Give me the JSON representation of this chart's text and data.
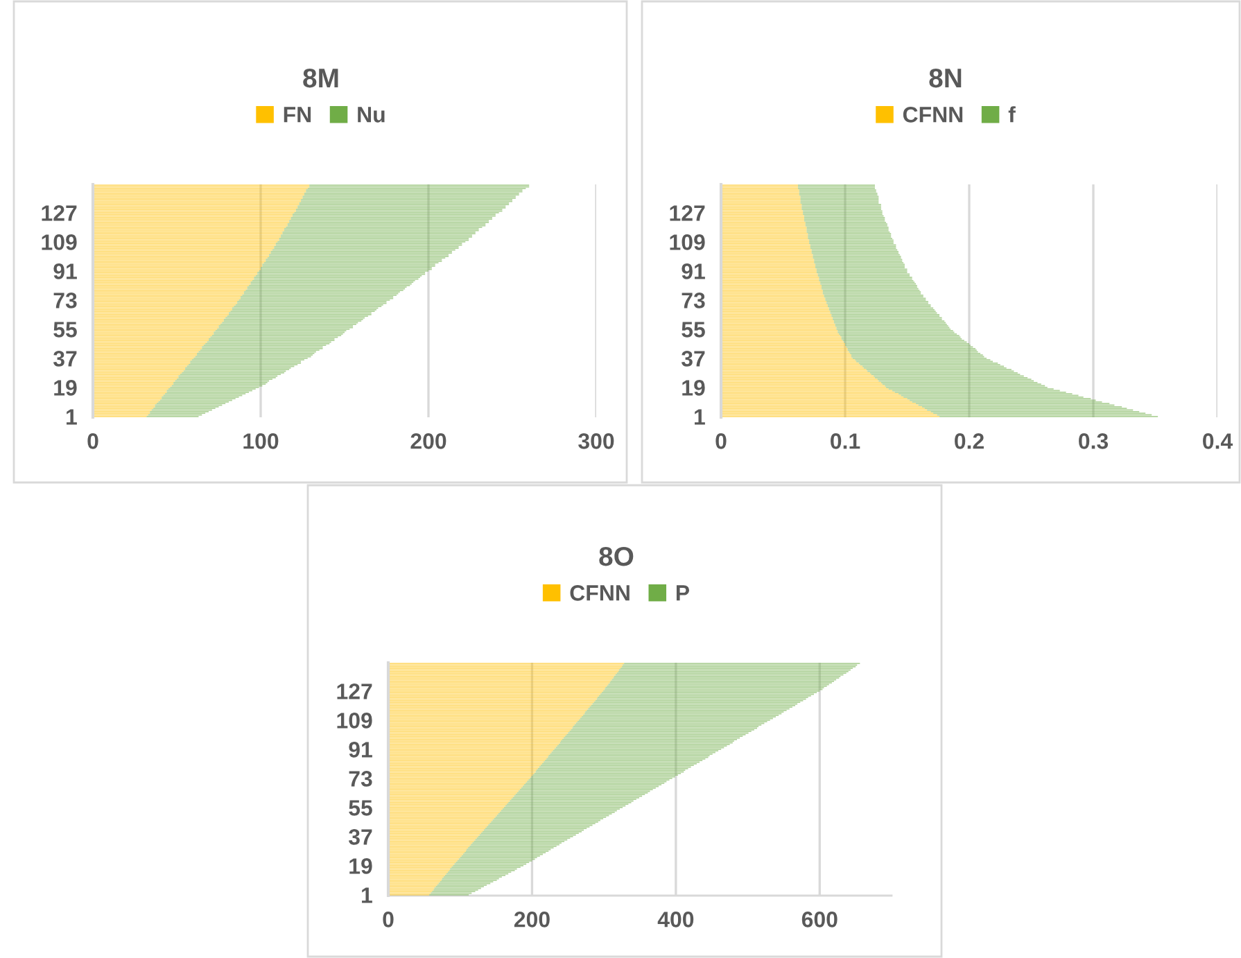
{
  "chart_data": [
    {
      "type": "bar",
      "orientation": "horizontal",
      "stacked": true,
      "title": "8M",
      "legend": "top",
      "grid": "x",
      "xlim": [
        0,
        300
      ],
      "xticks": [
        0,
        100,
        200,
        300
      ],
      "categories": [
        null,
        null,
        null,
        null,
        null,
        null,
        null,
        null,
        null,
        null,
        null,
        null,
        null,
        null,
        null,
        null,
        null,
        "127",
        null,
        null,
        null,
        null,
        null,
        null,
        null,
        null,
        null,
        null,
        null,
        null,
        null,
        null,
        null,
        null,
        null,
        "109",
        null,
        null,
        null,
        null,
        null,
        null,
        null,
        null,
        null,
        null,
        null,
        null,
        null,
        null,
        null,
        null,
        null,
        "91",
        null,
        null,
        null,
        null,
        null,
        null,
        null,
        null,
        null,
        null,
        null,
        null,
        null,
        null,
        null,
        null,
        null,
        "73",
        null,
        null,
        null,
        null,
        null,
        null,
        null,
        null,
        null,
        null,
        null,
        null,
        null,
        null,
        null,
        null,
        null,
        "55",
        null,
        null,
        null,
        null,
        null,
        null,
        null,
        null,
        null,
        null,
        null,
        null,
        null,
        null,
        null,
        null,
        null,
        "37",
        null,
        null,
        null,
        null,
        null,
        null,
        null,
        null,
        null,
        null,
        null,
        null,
        null,
        null,
        null,
        null,
        null,
        "19",
        null,
        null,
        null,
        null,
        null,
        null,
        null,
        null,
        null,
        null,
        null,
        null,
        null,
        null,
        null,
        null,
        null,
        "1"
      ],
      "series": [
        {
          "name": "FN",
          "color": "#ffc000",
          "values": [
            129,
            129,
            128,
            127,
            127,
            126,
            126,
            125,
            125,
            124,
            124,
            123,
            123,
            122,
            122,
            121,
            121,
            120,
            119,
            119,
            118,
            118,
            117,
            117,
            116,
            116,
            115,
            114,
            114,
            113,
            113,
            112,
            112,
            111,
            111,
            110,
            109,
            109,
            108,
            108,
            107,
            106,
            106,
            105,
            105,
            104,
            103,
            103,
            102,
            101,
            101,
            100,
            100,
            99,
            98,
            98,
            97,
            96,
            96,
            95,
            94,
            94,
            93,
            92,
            92,
            91,
            90,
            90,
            89,
            88,
            88,
            87,
            86,
            86,
            85,
            84,
            83,
            83,
            82,
            81,
            81,
            80,
            79,
            78,
            78,
            77,
            76,
            75,
            75,
            74,
            73,
            72,
            72,
            71,
            70,
            69,
            69,
            68,
            67,
            66,
            65,
            65,
            64,
            63,
            62,
            62,
            61,
            60,
            59,
            58,
            58,
            57,
            56,
            55,
            55,
            54,
            53,
            52,
            51,
            51,
            50,
            49,
            48,
            48,
            47,
            46,
            45,
            44,
            44,
            43,
            42,
            41,
            41,
            40,
            39,
            38,
            37,
            37,
            36,
            35,
            34,
            34,
            33,
            32
          ]
        },
        {
          "name": "Nu",
          "color": "#70ad47",
          "values": [
            131,
            131,
            130,
            129,
            129,
            128,
            128,
            127,
            127,
            126,
            126,
            125,
            125,
            124,
            124,
            123,
            123,
            122,
            121,
            121,
            120,
            120,
            119,
            119,
            118,
            118,
            117,
            116,
            116,
            115,
            115,
            114,
            114,
            113,
            113,
            112,
            111,
            111,
            110,
            110,
            109,
            108,
            108,
            107,
            107,
            106,
            105,
            105,
            104,
            103,
            103,
            102,
            102,
            101,
            100,
            100,
            99,
            99,
            98,
            97,
            97,
            96,
            96,
            95,
            94,
            94,
            93,
            92,
            92,
            91,
            91,
            90,
            89,
            89,
            88,
            88,
            87,
            86,
            86,
            85,
            85,
            84,
            83,
            83,
            82,
            81,
            81,
            80,
            80,
            79,
            78,
            78,
            77,
            77,
            76,
            75,
            75,
            74,
            74,
            73,
            72,
            72,
            71,
            70,
            70,
            69,
            69,
            68,
            67,
            66,
            66,
            65,
            64,
            63,
            62,
            61,
            61,
            60,
            59,
            58,
            57,
            56,
            56,
            55,
            54,
            53,
            52,
            51,
            49,
            48,
            47,
            46,
            44,
            43,
            42,
            41,
            40,
            38,
            37,
            36,
            35,
            33,
            32,
            31
          ]
        }
      ]
    },
    {
      "type": "bar",
      "orientation": "horizontal",
      "stacked": true,
      "title": "8N",
      "legend": "top",
      "grid": "x",
      "xlim": [
        0,
        0.4
      ],
      "xticks": [
        0,
        0.1,
        0.2,
        0.3,
        0.4
      ],
      "categories": [
        null,
        null,
        null,
        null,
        null,
        null,
        null,
        null,
        null,
        null,
        null,
        null,
        null,
        null,
        null,
        null,
        null,
        "127",
        null,
        null,
        null,
        null,
        null,
        null,
        null,
        null,
        null,
        null,
        null,
        null,
        null,
        null,
        null,
        null,
        null,
        "109",
        null,
        null,
        null,
        null,
        null,
        null,
        null,
        null,
        null,
        null,
        null,
        null,
        null,
        null,
        null,
        null,
        null,
        "91",
        null,
        null,
        null,
        null,
        null,
        null,
        null,
        null,
        null,
        null,
        null,
        null,
        null,
        null,
        null,
        null,
        null,
        "73",
        null,
        null,
        null,
        null,
        null,
        null,
        null,
        null,
        null,
        null,
        null,
        null,
        null,
        null,
        null,
        null,
        null,
        "55",
        null,
        null,
        null,
        null,
        null,
        null,
        null,
        null,
        null,
        null,
        null,
        null,
        null,
        null,
        null,
        null,
        null,
        "37",
        null,
        null,
        null,
        null,
        null,
        null,
        null,
        null,
        null,
        null,
        null,
        null,
        null,
        null,
        null,
        null,
        null,
        "19",
        null,
        null,
        null,
        null,
        null,
        null,
        null,
        null,
        null,
        null,
        null,
        null,
        null,
        null,
        null,
        null,
        null,
        "1"
      ],
      "series": [
        {
          "name": "CFNN",
          "color": "#ffc000",
          "values": [
            0.062,
            0.062,
            0.062,
            0.063,
            0.063,
            0.063,
            0.063,
            0.064,
            0.064,
            0.064,
            0.064,
            0.064,
            0.065,
            0.065,
            0.065,
            0.065,
            0.066,
            0.066,
            0.066,
            0.067,
            0.067,
            0.067,
            0.067,
            0.068,
            0.068,
            0.068,
            0.069,
            0.069,
            0.069,
            0.069,
            0.07,
            0.07,
            0.07,
            0.07,
            0.071,
            0.071,
            0.071,
            0.072,
            0.072,
            0.072,
            0.073,
            0.073,
            0.073,
            0.074,
            0.074,
            0.074,
            0.075,
            0.075,
            0.075,
            0.076,
            0.076,
            0.076,
            0.077,
            0.077,
            0.077,
            0.078,
            0.078,
            0.079,
            0.079,
            0.079,
            0.08,
            0.08,
            0.081,
            0.081,
            0.081,
            0.082,
            0.082,
            0.082,
            0.083,
            0.083,
            0.084,
            0.084,
            0.085,
            0.085,
            0.086,
            0.086,
            0.087,
            0.087,
            0.088,
            0.088,
            0.089,
            0.089,
            0.09,
            0.09,
            0.091,
            0.091,
            0.092,
            0.092,
            0.093,
            0.093,
            0.094,
            0.094,
            0.095,
            0.096,
            0.097,
            0.097,
            0.098,
            0.099,
            0.1,
            0.1,
            0.101,
            0.102,
            0.102,
            0.103,
            0.104,
            0.105,
            0.105,
            0.106,
            0.108,
            0.109,
            0.111,
            0.112,
            0.114,
            0.115,
            0.117,
            0.118,
            0.12,
            0.121,
            0.123,
            0.124,
            0.126,
            0.127,
            0.129,
            0.13,
            0.132,
            0.133,
            0.135,
            0.138,
            0.14,
            0.143,
            0.145,
            0.147,
            0.15,
            0.152,
            0.154,
            0.157,
            0.159,
            0.162,
            0.164,
            0.166,
            0.169,
            0.171,
            0.174,
            0.176
          ]
        },
        {
          "name": "f",
          "color": "#70ad47",
          "values": [
            0.062,
            0.062,
            0.062,
            0.062,
            0.062,
            0.063,
            0.063,
            0.063,
            0.063,
            0.063,
            0.063,
            0.063,
            0.064,
            0.064,
            0.064,
            0.064,
            0.064,
            0.064,
            0.064,
            0.064,
            0.065,
            0.065,
            0.065,
            0.065,
            0.066,
            0.066,
            0.066,
            0.066,
            0.066,
            0.067,
            0.067,
            0.067,
            0.067,
            0.068,
            0.068,
            0.068,
            0.068,
            0.069,
            0.069,
            0.069,
            0.069,
            0.07,
            0.07,
            0.07,
            0.071,
            0.071,
            0.071,
            0.071,
            0.072,
            0.072,
            0.072,
            0.072,
            0.073,
            0.073,
            0.073,
            0.074,
            0.074,
            0.075,
            0.075,
            0.076,
            0.076,
            0.077,
            0.077,
            0.077,
            0.078,
            0.078,
            0.079,
            0.079,
            0.08,
            0.08,
            0.081,
            0.081,
            0.082,
            0.082,
            0.083,
            0.083,
            0.084,
            0.085,
            0.085,
            0.086,
            0.087,
            0.087,
            0.088,
            0.088,
            0.089,
            0.09,
            0.09,
            0.091,
            0.091,
            0.092,
            0.093,
            0.094,
            0.095,
            0.096,
            0.096,
            0.097,
            0.098,
            0.099,
            0.1,
            0.101,
            0.102,
            0.103,
            0.104,
            0.104,
            0.105,
            0.106,
            0.107,
            0.108,
            0.109,
            0.11,
            0.112,
            0.113,
            0.114,
            0.115,
            0.117,
            0.118,
            0.119,
            0.12,
            0.121,
            0.123,
            0.124,
            0.125,
            0.126,
            0.128,
            0.129,
            0.13,
            0.133,
            0.135,
            0.138,
            0.14,
            0.143,
            0.145,
            0.148,
            0.15,
            0.153,
            0.156,
            0.158,
            0.161,
            0.163,
            0.166,
            0.168,
            0.171,
            0.173,
            0.176
          ]
        }
      ]
    },
    {
      "type": "bar",
      "orientation": "horizontal",
      "stacked": true,
      "title": "8O",
      "legend": "top",
      "grid": "x",
      "xlim": [
        0,
        700
      ],
      "xticks": [
        0,
        200,
        400,
        600
      ],
      "categories": [
        null,
        null,
        null,
        null,
        null,
        null,
        null,
        null,
        null,
        null,
        null,
        null,
        null,
        null,
        null,
        null,
        null,
        "127",
        null,
        null,
        null,
        null,
        null,
        null,
        null,
        null,
        null,
        null,
        null,
        null,
        null,
        null,
        null,
        null,
        null,
        "109",
        null,
        null,
        null,
        null,
        null,
        null,
        null,
        null,
        null,
        null,
        null,
        null,
        null,
        null,
        null,
        null,
        null,
        "91",
        null,
        null,
        null,
        null,
        null,
        null,
        null,
        null,
        null,
        null,
        null,
        null,
        null,
        null,
        null,
        null,
        null,
        "73",
        null,
        null,
        null,
        null,
        null,
        null,
        null,
        null,
        null,
        null,
        null,
        null,
        null,
        null,
        null,
        null,
        null,
        "55",
        null,
        null,
        null,
        null,
        null,
        null,
        null,
        null,
        null,
        null,
        null,
        null,
        null,
        null,
        null,
        null,
        null,
        "37",
        null,
        null,
        null,
        null,
        null,
        null,
        null,
        null,
        null,
        null,
        null,
        null,
        null,
        null,
        null,
        null,
        null,
        "19",
        null,
        null,
        null,
        null,
        null,
        null,
        null,
        null,
        null,
        null,
        null,
        null,
        null,
        null,
        null,
        null,
        null,
        "1"
      ],
      "series": [
        {
          "name": "CFNN",
          "color": "#ffc000",
          "values": [
            328,
            326,
            325,
            323,
            321,
            320,
            318,
            316,
            314,
            313,
            311,
            309,
            308,
            306,
            304,
            302,
            301,
            299,
            297,
            295,
            293,
            291,
            290,
            288,
            286,
            284,
            282,
            280,
            278,
            276,
            274,
            273,
            271,
            269,
            267,
            265,
            263,
            261,
            259,
            257,
            256,
            254,
            252,
            250,
            248,
            246,
            244,
            242,
            240,
            239,
            237,
            235,
            233,
            231,
            229,
            227,
            225,
            223,
            222,
            220,
            218,
            216,
            214,
            212,
            210,
            208,
            206,
            205,
            203,
            201,
            199,
            197,
            195,
            193,
            191,
            189,
            187,
            185,
            183,
            181,
            179,
            177,
            175,
            173,
            171,
            169,
            167,
            165,
            163,
            161,
            159,
            157,
            155,
            153,
            151,
            149,
            147,
            145,
            143,
            141,
            139,
            137,
            135,
            133,
            131,
            129,
            127,
            125,
            123,
            121,
            119,
            117,
            115,
            113,
            111,
            109,
            108,
            106,
            104,
            102,
            100,
            98,
            96,
            94,
            92,
            90,
            88,
            86,
            85,
            83,
            81,
            79,
            77,
            75,
            74,
            72,
            70,
            68,
            66,
            64,
            63,
            61,
            59,
            57
          ]
        },
        {
          "name": "P",
          "color": "#70ad47",
          "values": [
            328,
            326,
            325,
            323,
            322,
            320,
            319,
            317,
            315,
            314,
            312,
            311,
            309,
            307,
            306,
            304,
            303,
            301,
            299,
            297,
            295,
            293,
            291,
            289,
            287,
            285,
            284,
            282,
            280,
            278,
            276,
            274,
            272,
            270,
            268,
            266,
            264,
            262,
            260,
            258,
            257,
            255,
            253,
            251,
            249,
            247,
            245,
            243,
            241,
            240,
            238,
            236,
            234,
            232,
            230,
            228,
            226,
            224,
            223,
            221,
            219,
            217,
            215,
            213,
            211,
            209,
            207,
            206,
            204,
            202,
            200,
            198,
            196,
            194,
            193,
            191,
            189,
            187,
            185,
            183,
            182,
            180,
            178,
            176,
            174,
            172,
            171,
            169,
            167,
            165,
            163,
            161,
            160,
            158,
            156,
            154,
            152,
            150,
            149,
            147,
            145,
            143,
            141,
            139,
            138,
            136,
            134,
            132,
            130,
            128,
            126,
            124,
            123,
            121,
            119,
            117,
            115,
            113,
            111,
            109,
            107,
            106,
            104,
            102,
            100,
            98,
            96,
            93,
            91,
            88,
            86,
            84,
            81,
            79,
            77,
            74,
            72,
            69,
            67,
            65,
            62,
            60,
            57,
            55
          ]
        }
      ]
    }
  ]
}
